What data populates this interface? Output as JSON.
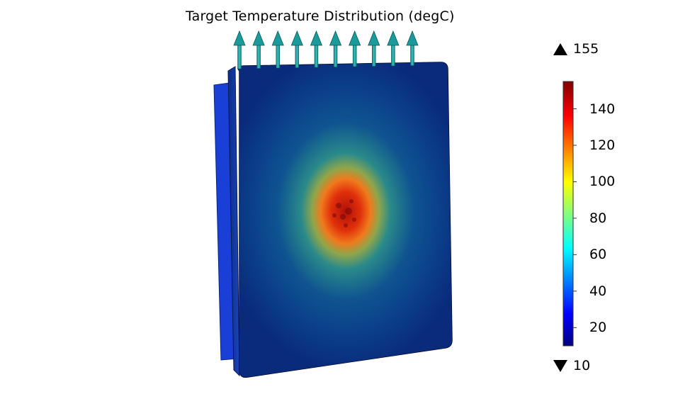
{
  "plot": {
    "title": "Target Temperature Distribution (degC)",
    "unit": "degC"
  },
  "colorbar": {
    "min": 10,
    "max": 155,
    "ticks": [
      20,
      40,
      60,
      80,
      100,
      120,
      140
    ],
    "tick_labels": [
      "20",
      "40",
      "60",
      "80",
      "100",
      "120",
      "140"
    ],
    "colormap": "rainbow",
    "colors": [
      "#00007f",
      "#0000ff",
      "#00ffff",
      "#ffff00",
      "#ff0000",
      "#7f0000"
    ]
  },
  "range_markers": {
    "max_label": "155",
    "min_label": "10"
  },
  "arrows": {
    "count": 10,
    "color": "#1a9a9a"
  },
  "field": {
    "background_temp": 10,
    "hotspot_peak_temp": 155,
    "back_plate_color": "#1a3fd6"
  }
}
